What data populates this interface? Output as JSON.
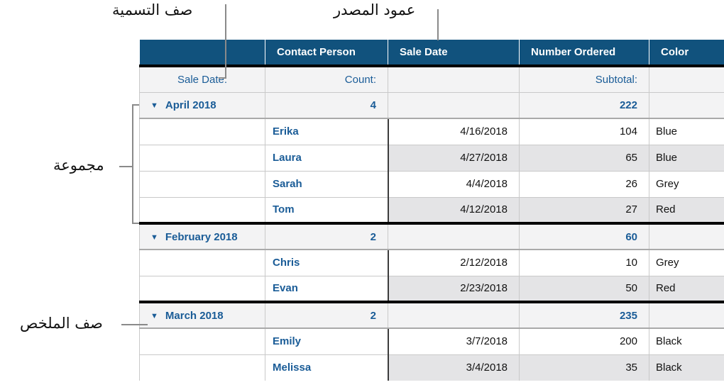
{
  "annotations": {
    "label_row": "صف التسمية",
    "source_column": "عمود المصدر",
    "group": "مجموعة",
    "summary_row": "صف الملخص"
  },
  "table": {
    "columns": [
      "",
      "Contact Person",
      "Sale Date",
      "Number Ordered",
      "Color"
    ],
    "label_row": {
      "category_label": "Sale Date:",
      "count_label": "Count:",
      "subtotal_label": "Subtotal:"
    },
    "disclosure_icon": "▼",
    "groups": [
      {
        "name": "April 2018",
        "count": "4",
        "subtotal": "222",
        "rows": [
          {
            "person": "Erika",
            "date": "4/16/2018",
            "number": "104",
            "color": "Blue"
          },
          {
            "person": "Laura",
            "date": "4/27/2018",
            "number": "65",
            "color": "Blue"
          },
          {
            "person": "Sarah",
            "date": "4/4/2018",
            "number": "26",
            "color": "Grey"
          },
          {
            "person": "Tom",
            "date": "4/12/2018",
            "number": "27",
            "color": "Red"
          }
        ]
      },
      {
        "name": "February 2018",
        "count": "2",
        "subtotal": "60",
        "rows": [
          {
            "person": "Chris",
            "date": "2/12/2018",
            "number": "10",
            "color": "Grey"
          },
          {
            "person": "Evan",
            "date": "2/23/2018",
            "number": "50",
            "color": "Red"
          }
        ]
      },
      {
        "name": "March 2018",
        "count": "2",
        "subtotal": "235",
        "rows": [
          {
            "person": "Emily",
            "date": "3/7/2018",
            "number": "200",
            "color": "Black"
          },
          {
            "person": "Melissa",
            "date": "3/4/2018",
            "number": "35",
            "color": "Black"
          }
        ]
      }
    ]
  },
  "colors": {
    "header_bg": "#11527d",
    "header_text": "#ffffff",
    "accent_blue": "#1a5c97",
    "shaded_cell": "#e4e4e6",
    "group_row_bg": "#f3f3f4",
    "thick_border": "#000000",
    "annotation_line": "#8a8a8a"
  }
}
